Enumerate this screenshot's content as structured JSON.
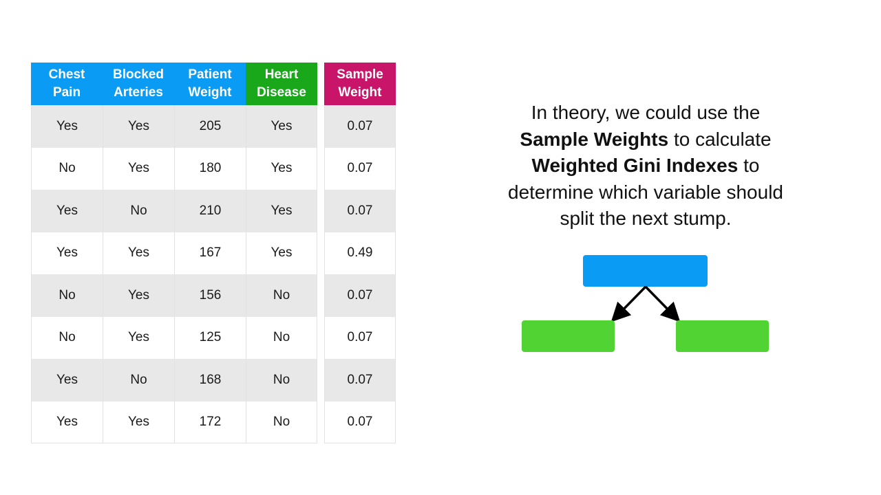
{
  "table": {
    "headers": [
      {
        "lines": [
          "Chest",
          "Pain"
        ],
        "color": "#0a9bf5"
      },
      {
        "lines": [
          "Blocked",
          "Arteries"
        ],
        "color": "#0a9bf5"
      },
      {
        "lines": [
          "Patient",
          "Weight"
        ],
        "color": "#0a9bf5"
      },
      {
        "lines": [
          "Heart",
          "Disease"
        ],
        "color": "#18a81a"
      }
    ],
    "rows": [
      [
        "Yes",
        "Yes",
        "205",
        "Yes"
      ],
      [
        "No",
        "Yes",
        "180",
        "Yes"
      ],
      [
        "Yes",
        "No",
        "210",
        "Yes"
      ],
      [
        "Yes",
        "Yes",
        "167",
        "Yes"
      ],
      [
        "No",
        "Yes",
        "156",
        "No"
      ],
      [
        "No",
        "Yes",
        "125",
        "No"
      ],
      [
        "Yes",
        "No",
        "168",
        "No"
      ],
      [
        "Yes",
        "Yes",
        "172",
        "No"
      ]
    ]
  },
  "weights": {
    "header": {
      "lines": [
        "Sample",
        "Weight"
      ],
      "color": "#c8156a"
    },
    "values": [
      "0.07",
      "0.07",
      "0.07",
      "0.49",
      "0.07",
      "0.07",
      "0.07",
      "0.07"
    ]
  },
  "explanation": {
    "line1": "In theory, we could use the",
    "line2_bold": "Sample Weights",
    "line2_rest": " to calculate",
    "line3_bold": "Weighted Gini Indexes",
    "line3_rest": " to",
    "line4": "determine which variable should",
    "line5": "split the next stump."
  },
  "stump": {
    "root_color": "#0a9bf5",
    "leaf_color": "#52d334",
    "arrow_color": "#000000"
  }
}
